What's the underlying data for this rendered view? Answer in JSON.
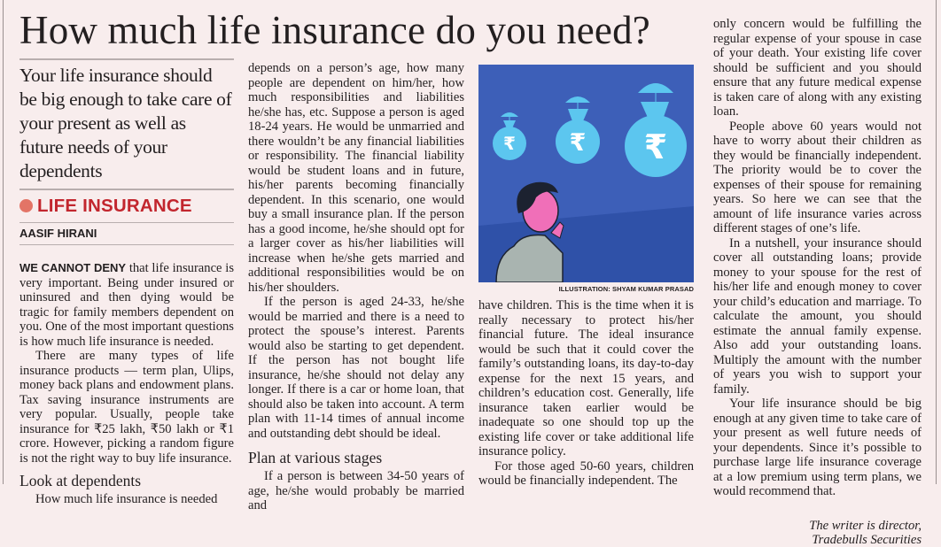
{
  "headline": "How much life insurance do you need?",
  "summary": "Your life insurance should be big enough to take care of your present as well as future needs of your dependents",
  "section_label": "LIFE INSURANCE",
  "author": "AASIF HIRANI",
  "lead_in": "WE CANNOT DENY",
  "col1": {
    "p1": " that life insurance is very important. Being under insured or uninsured and then dying would be tragic for family members dependent on you. One of the most important questions is how much life insurance is needed.",
    "p2": "There are many types of life insurance products — term plan, Ulips, money back plans and endowment plans. Tax saving insurance instruments are very popular. Usually, people take insurance for ₹25 lakh, ₹50 lakh or ₹1 crore. However, picking a random figure is not the right way to buy life insurance.",
    "subhead": "Look at dependents",
    "p3": "How much life insurance is needed"
  },
  "col2": {
    "p1": "depends on a person’s age, how many people are dependent on him/her, how much responsibilities and liabilities he/she has, etc. Suppose a person is aged 18-24 years. He would be unmarried and there wouldn’t be any financial liabilities or responsibility. The financial liability would be student loans and in future, his/her parents becoming financially dependent. In this scenario, one would buy a small insurance plan. If the person has a good income, he/she should opt for a larger cover as his/her liabilities will increase when he/she gets married and additional responsibilities would be on his/her shoulders.",
    "p2": "If the person is aged 24-33, he/she would be married and there is a need to protect the spouse’s interest. Parents would also be starting to get dependent. If the person has not bought life insurance, he/she should not delay any longer. If there is a car or home loan, that should also be taken into account. A term plan with 11-14 times of annual income and outstanding debt should be ideal.",
    "subhead": "Plan at various stages",
    "p3": "If a person is between 34-50 years of age, he/she would probably be married and"
  },
  "illustration": {
    "caption": "ILLUSTRATION: SHYAM KUMAR PRASAD",
    "colors": {
      "sky": "#3d5fb8",
      "ground": "#2f51a8",
      "bag": "#5cc6ef",
      "skin": "#f06fb8",
      "shirt": "#a9b4b0"
    }
  },
  "col3": {
    "p1": "have children. This is the time when it is really necessary to protect his/her financial future. The ideal insurance would be such that it could cover the family’s outstanding loans, its day-to-day expense for the next 15 years, and children’s education cost. Generally, life insurance taken earlier would be inadequate so one should top up the existing life cover or take additional life insurance policy.",
    "p2": "For those aged 50-60 years, children would be financially independent. The"
  },
  "col4": {
    "p1": "only concern would be fulfilling the regular expense of your spouse in case of your death. Your existing life cover should be sufficient and you should ensure that any future medical expense is taken care of along with any existing loan.",
    "p2": "People above 60 years would not have to worry about their children as they would be financially independent. The priority would be to cover the expenses of their spouse for remaining years. So here we can see that the amount of life insurance varies across different stages of one’s life.",
    "p3": "In a nutshell, your insurance should cover all outstanding loans; provide money to your spouse for the rest of his/her life and enough money to cover your child’s education and marriage. To calculate the amount, you should estimate the annual family expense. Also add your outstanding loans. Multiply the amount with the number of years you wish to support your family.",
    "p4": "Your life insurance should be big enough at any given time to take care of your present as well future needs of your dependents. Since it’s possible to purchase large life insurance coverage at a low premium using term plans, we would recommend that.",
    "sig1": "The writer is director,",
    "sig2": "Tradebulls Securities"
  },
  "colors": {
    "background": "#f8eded",
    "section_red": "#c2262e",
    "dot": "#e37466"
  }
}
